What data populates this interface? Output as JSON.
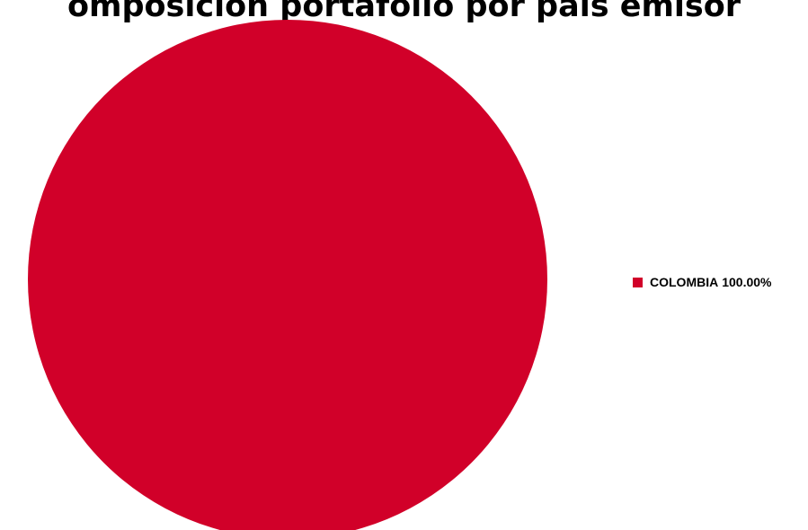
{
  "chart_data": {
    "type": "pie",
    "title": "omposición portafolio por país emisor",
    "slices": [
      {
        "label": "COLOMBIA",
        "value": 100.0,
        "display": "100.00%",
        "color": "#d10029"
      }
    ],
    "legend_position": "right"
  }
}
